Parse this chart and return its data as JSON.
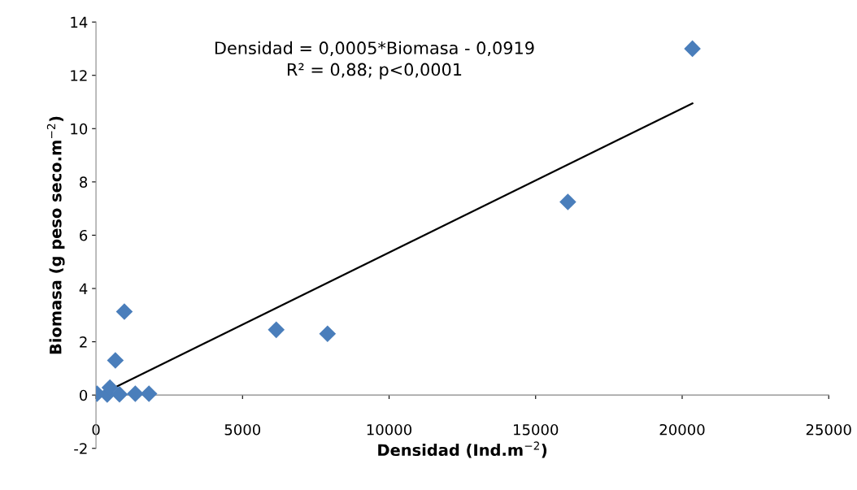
{
  "chart_data": {
    "type": "scatter",
    "xlabel": "Densidad (Ind.m$^{−2}$)",
    "ylabel": "Biomasa (g peso seco.m$^{−2}$)",
    "annotations": [
      "Densidad = 0,0005*Biomasa - 0,0919\nR² = 0,88; p<0,0001"
    ],
    "series": [
      {
        "color": "#4a7ebb",
        "marker": "diamond",
        "x": [
          36,
          383,
          475,
          661,
          801,
          968,
          1341,
          1807,
          6150,
          7900,
          16100,
          20350
        ],
        "values": [
          0.05,
          0.02,
          0.28,
          1.3,
          0.03,
          3.13,
          0.05,
          0.05,
          2.45,
          2.3,
          7.25,
          13
        ]
      },
      {
        "type": "line",
        "color": "#000000",
        "x": [
          0,
          20350
        ],
        "values": [
          -0.06,
          10.95
        ]
      }
    ],
    "xlim": [
      0,
      25000
    ],
    "xticks": [
      0,
      5000,
      10000,
      15000,
      20000,
      25000
    ],
    "ylim": [
      -2,
      14
    ],
    "yticks": [
      -2,
      0,
      2,
      4,
      6,
      8,
      10,
      12,
      14
    ],
    "grid": false,
    "legend": false
  }
}
